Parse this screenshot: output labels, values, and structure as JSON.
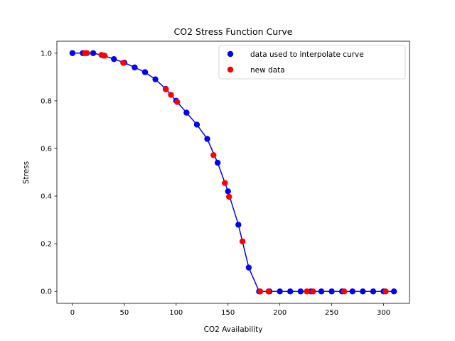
{
  "chart_data": {
    "type": "scatter",
    "title": "CO2 Stress Function Curve",
    "xlabel": "CO2 Availability",
    "ylabel": "Stress",
    "xlim": [
      -15,
      325
    ],
    "ylim": [
      -0.05,
      1.05
    ],
    "xticks": [
      0,
      50,
      100,
      150,
      200,
      250,
      300
    ],
    "yticks": [
      0.0,
      0.2,
      0.4,
      0.6,
      0.8,
      1.0
    ],
    "grid": false,
    "legend_position": "top-right",
    "series": [
      {
        "name": "data used to interpolate curve",
        "color": "#0000ff",
        "line": true,
        "x": [
          0,
          10,
          20,
          30,
          40,
          50,
          60,
          70,
          80,
          90,
          100,
          110,
          120,
          130,
          140,
          150,
          160,
          170,
          180,
          190,
          200,
          210,
          220,
          230,
          240,
          250,
          260,
          270,
          280,
          290,
          300,
          310
        ],
        "y": [
          1.0,
          1.0,
          1.0,
          0.99,
          0.975,
          0.96,
          0.94,
          0.92,
          0.89,
          0.85,
          0.8,
          0.75,
          0.7,
          0.64,
          0.54,
          0.42,
          0.28,
          0.1,
          0.0,
          0.0,
          0.0,
          0.0,
          0.0,
          0.0,
          0.0,
          0.0,
          0.0,
          0.0,
          0.0,
          0.0,
          0.0,
          0.0
        ]
      },
      {
        "name": "new data",
        "color": "#ff0000",
        "line": false,
        "x": [
          12,
          14,
          28,
          31,
          49,
          90,
          95,
          101,
          136,
          147,
          151,
          164,
          181,
          189,
          226,
          232,
          262,
          302
        ],
        "y": [
          1.0,
          1.0,
          0.992,
          0.989,
          0.959,
          0.848,
          0.825,
          0.795,
          0.572,
          0.455,
          0.397,
          0.21,
          0.0,
          0.0,
          0.0,
          0.0,
          0.0,
          0.0
        ]
      }
    ]
  }
}
